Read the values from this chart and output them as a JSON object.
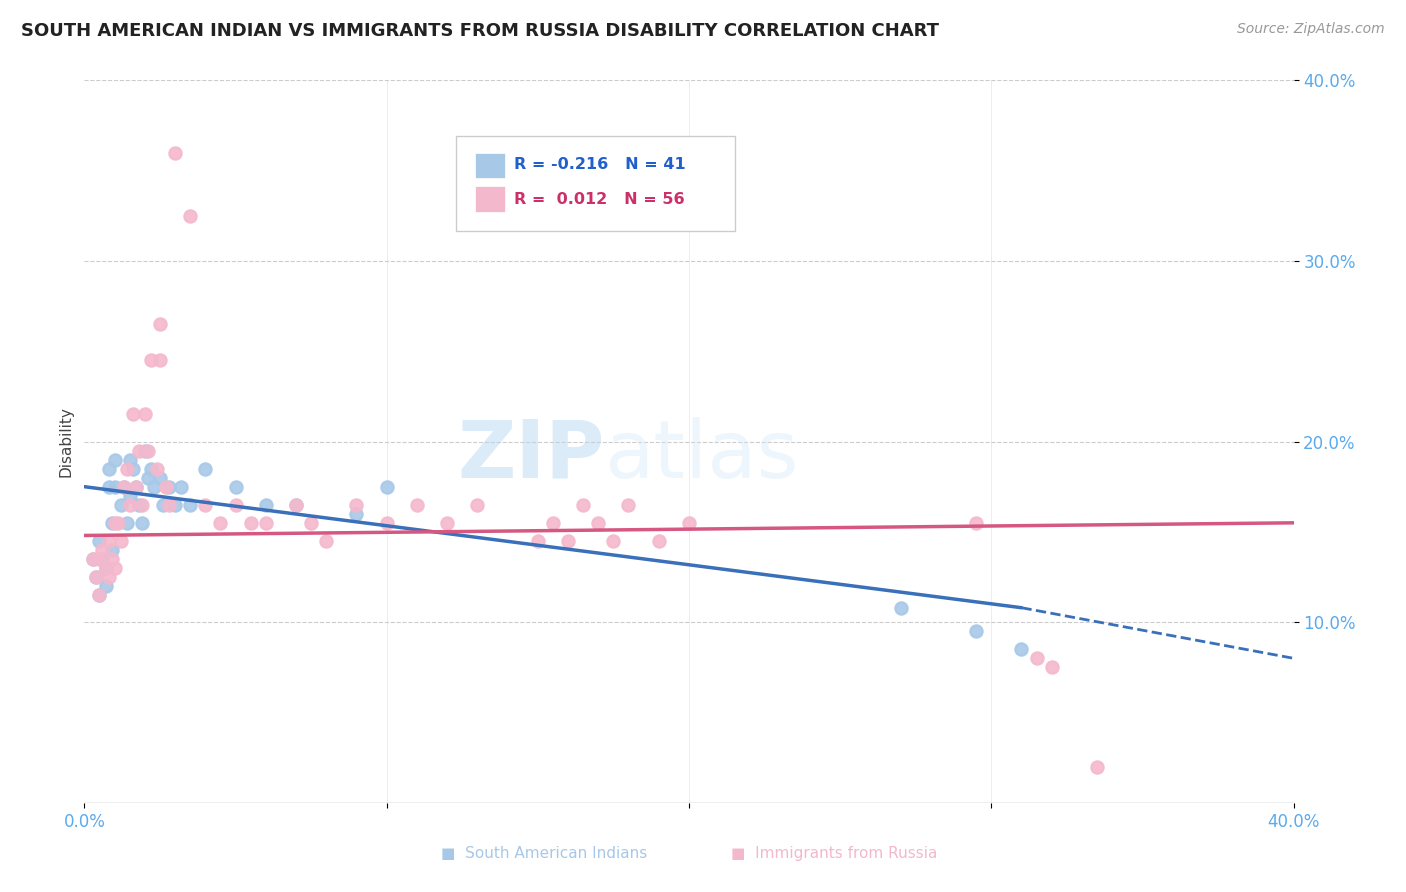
{
  "title": "SOUTH AMERICAN INDIAN VS IMMIGRANTS FROM RUSSIA DISABILITY CORRELATION CHART",
  "source": "Source: ZipAtlas.com",
  "ylabel": "Disability",
  "xlim": [
    0.0,
    0.4
  ],
  "ylim": [
    0.0,
    0.4
  ],
  "legend_blue_r": "-0.216",
  "legend_blue_n": "41",
  "legend_pink_r": "0.012",
  "legend_pink_n": "56",
  "blue_color": "#a8c8e8",
  "pink_color": "#f4b8cc",
  "blue_line_color": "#3a6fba",
  "pink_line_color": "#d45880",
  "background_color": "#ffffff",
  "watermark_zip": "ZIP",
  "watermark_atlas": "atlas",
  "blue_scatter_x": [
    0.003,
    0.004,
    0.005,
    0.005,
    0.006,
    0.007,
    0.007,
    0.008,
    0.008,
    0.009,
    0.009,
    0.01,
    0.01,
    0.012,
    0.013,
    0.014,
    0.015,
    0.015,
    0.016,
    0.017,
    0.018,
    0.019,
    0.02,
    0.021,
    0.022,
    0.023,
    0.025,
    0.026,
    0.028,
    0.03,
    0.032,
    0.035,
    0.04,
    0.05,
    0.06,
    0.07,
    0.09,
    0.1,
    0.27,
    0.295,
    0.31
  ],
  "blue_scatter_y": [
    0.135,
    0.125,
    0.145,
    0.115,
    0.135,
    0.13,
    0.12,
    0.185,
    0.175,
    0.155,
    0.14,
    0.19,
    0.175,
    0.165,
    0.175,
    0.155,
    0.19,
    0.17,
    0.185,
    0.175,
    0.165,
    0.155,
    0.195,
    0.18,
    0.185,
    0.175,
    0.18,
    0.165,
    0.175,
    0.165,
    0.175,
    0.165,
    0.185,
    0.175,
    0.165,
    0.165,
    0.16,
    0.175,
    0.108,
    0.095,
    0.085
  ],
  "pink_scatter_x": [
    0.003,
    0.004,
    0.005,
    0.005,
    0.006,
    0.007,
    0.008,
    0.008,
    0.009,
    0.01,
    0.01,
    0.011,
    0.012,
    0.013,
    0.014,
    0.015,
    0.016,
    0.017,
    0.018,
    0.019,
    0.02,
    0.021,
    0.022,
    0.024,
    0.025,
    0.025,
    0.027,
    0.028,
    0.03,
    0.035,
    0.04,
    0.045,
    0.05,
    0.055,
    0.06,
    0.07,
    0.075,
    0.08,
    0.09,
    0.1,
    0.11,
    0.12,
    0.13,
    0.15,
    0.155,
    0.16,
    0.165,
    0.17,
    0.175,
    0.18,
    0.19,
    0.2,
    0.295,
    0.315,
    0.32,
    0.335
  ],
  "pink_scatter_y": [
    0.135,
    0.125,
    0.135,
    0.115,
    0.14,
    0.13,
    0.145,
    0.125,
    0.135,
    0.155,
    0.13,
    0.155,
    0.145,
    0.175,
    0.185,
    0.165,
    0.215,
    0.175,
    0.195,
    0.165,
    0.215,
    0.195,
    0.245,
    0.185,
    0.265,
    0.245,
    0.175,
    0.165,
    0.36,
    0.325,
    0.165,
    0.155,
    0.165,
    0.155,
    0.155,
    0.165,
    0.155,
    0.145,
    0.165,
    0.155,
    0.165,
    0.155,
    0.165,
    0.145,
    0.155,
    0.145,
    0.165,
    0.155,
    0.145,
    0.165,
    0.145,
    0.155,
    0.155,
    0.08,
    0.075,
    0.02
  ],
  "blue_line_x_start": 0.0,
  "blue_line_x_solid_end": 0.31,
  "blue_line_x_end": 0.4,
  "blue_line_y_start": 0.175,
  "blue_line_y_solid_end": 0.108,
  "blue_line_y_end": 0.08,
  "pink_line_x_start": 0.0,
  "pink_line_x_end": 0.4,
  "pink_line_y_start": 0.148,
  "pink_line_y_end": 0.155
}
